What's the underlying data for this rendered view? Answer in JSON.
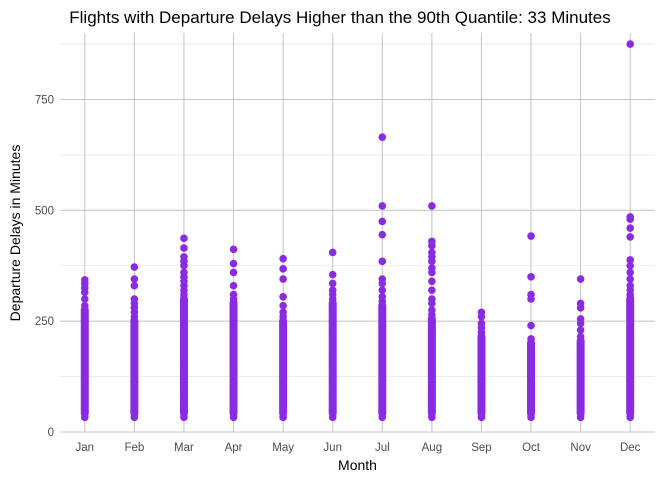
{
  "chart_data": {
    "type": "scatter",
    "title": "Flights with Departure Delays Higher than the 90th Quantile: 33 Minutes",
    "xlabel": "Month",
    "ylabel": "Departure Delays in Minutes",
    "categories": [
      "Jan",
      "Feb",
      "Mar",
      "Apr",
      "May",
      "Jun",
      "Jul",
      "Aug",
      "Sep",
      "Oct",
      "Nov",
      "Dec"
    ],
    "ylim": [
      0,
      900
    ],
    "yticks": [
      0,
      250,
      500,
      750
    ],
    "y_tick_labels": [
      "0",
      "250",
      "500",
      "750"
    ],
    "threshold": 33,
    "grid": true,
    "point_color": "#8a2be2",
    "series": [
      {
        "points_by_month": [
          {
            "month": "Jan",
            "dense_min": 33,
            "dense_max": 285,
            "outliers": [
              300,
              315,
              325,
              335,
              343
            ]
          },
          {
            "month": "Feb",
            "dense_min": 33,
            "dense_max": 260,
            "outliers": [
              270,
              280,
              290,
              300,
              330,
              345,
              372
            ]
          },
          {
            "month": "Mar",
            "dense_min": 33,
            "dense_max": 310,
            "outliers": [
              320,
              330,
              340,
              350,
              360,
              375,
              385,
              395,
              415,
              437
            ]
          },
          {
            "month": "Apr",
            "dense_min": 33,
            "dense_max": 300,
            "outliers": [
              310,
              330,
              360,
              380,
              412
            ]
          },
          {
            "month": "May",
            "dense_min": 33,
            "dense_max": 260,
            "outliers": [
              270,
              285,
              305,
              345,
              368,
              391
            ]
          },
          {
            "month": "Jun",
            "dense_min": 33,
            "dense_max": 300,
            "outliers": [
              310,
              320,
              335,
              355,
              405
            ]
          },
          {
            "month": "Jul",
            "dense_min": 33,
            "dense_max": 295,
            "outliers": [
              305,
              320,
              335,
              345,
              385,
              445,
              475,
              510,
              665
            ]
          },
          {
            "month": "Aug",
            "dense_min": 33,
            "dense_max": 265,
            "outliers": [
              275,
              290,
              300,
              320,
              340,
              360,
              370,
              385,
              395,
              405,
              420,
              430,
              510
            ]
          },
          {
            "month": "Sep",
            "dense_min": 33,
            "dense_max": 225,
            "outliers": [
              235,
              245,
              260,
              270
            ]
          },
          {
            "month": "Oct",
            "dense_min": 33,
            "dense_max": 210,
            "outliers": [
              240,
              300,
              310,
              350,
              442
            ]
          },
          {
            "month": "Nov",
            "dense_min": 33,
            "dense_max": 215,
            "outliers": [
              230,
              245,
              255,
              280,
              290,
              345
            ]
          },
          {
            "month": "Dec",
            "dense_min": 33,
            "dense_max": 310,
            "outliers": [
              320,
              330,
              345,
              360,
              375,
              388,
              440,
              460,
              480,
              485,
              875
            ]
          }
        ]
      }
    ]
  }
}
